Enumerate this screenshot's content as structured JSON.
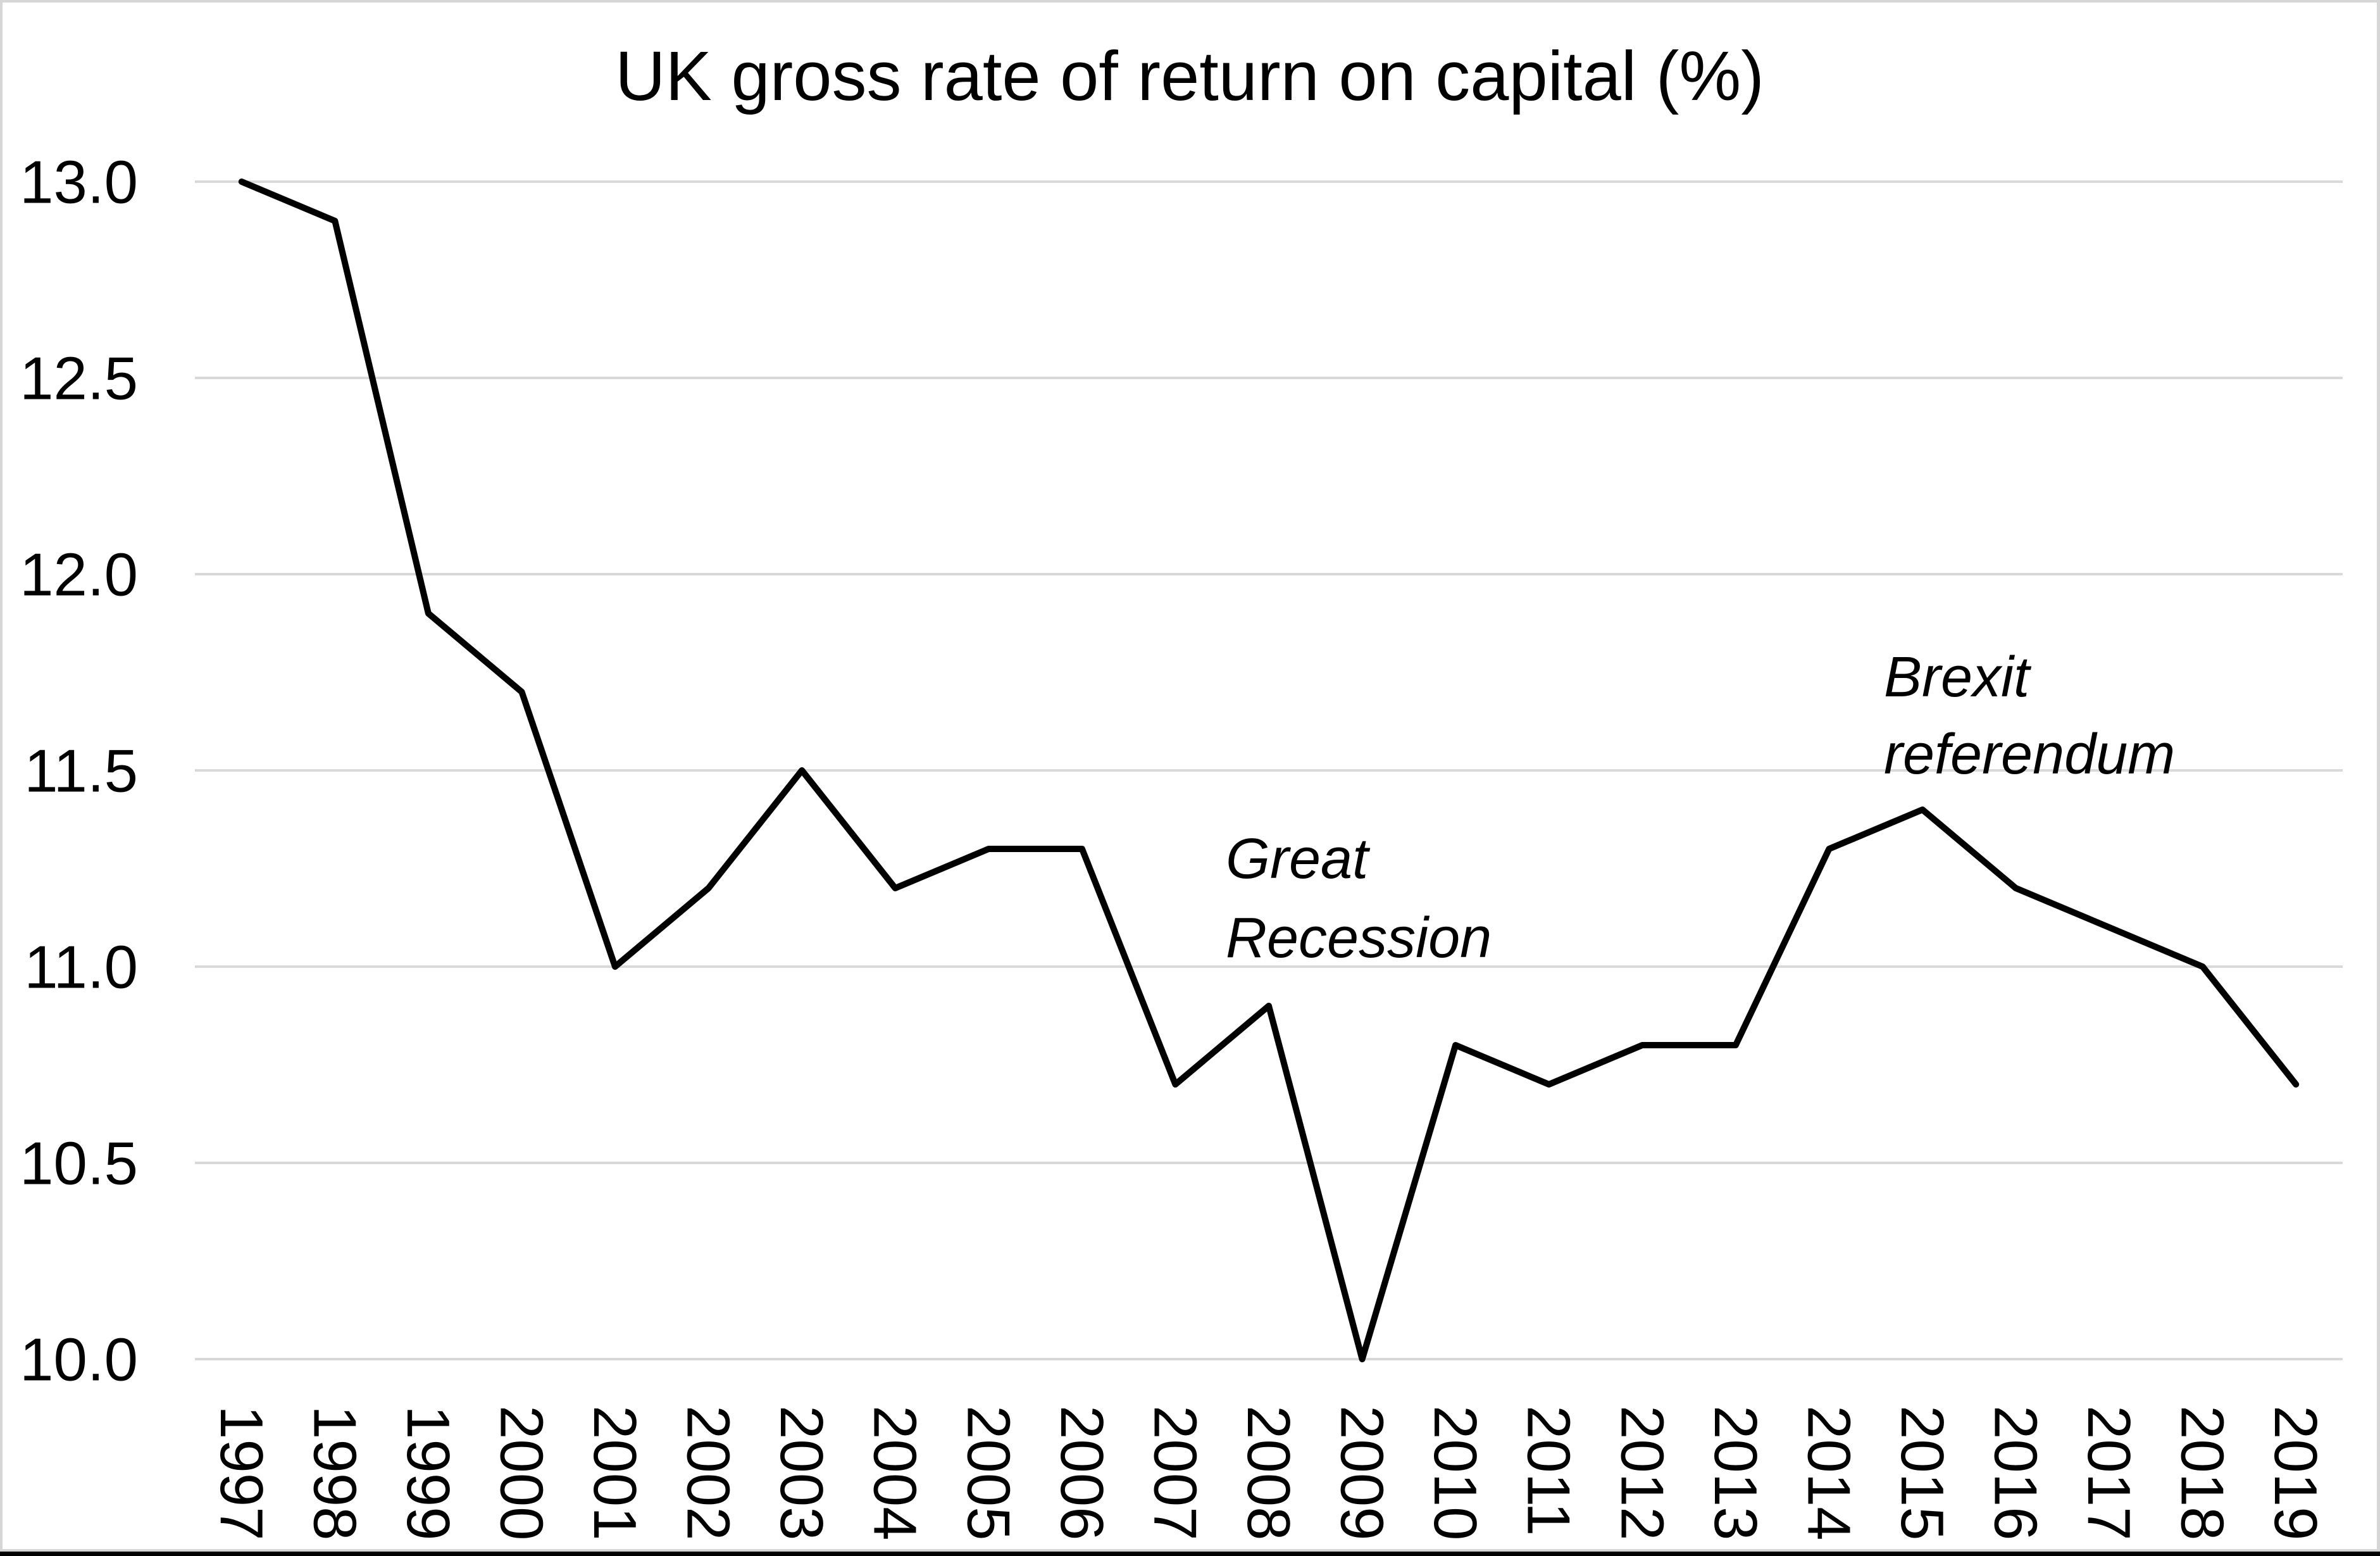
{
  "title": "UK gross rate of return on capital (%)",
  "chart_data": {
    "type": "line",
    "title": "UK gross rate of return on capital (%)",
    "x": [
      "1997",
      "1998",
      "1999",
      "2000",
      "2001",
      "2002",
      "2003",
      "2004",
      "2005",
      "2006",
      "2007",
      "2008",
      "2009",
      "2010",
      "2011",
      "2012",
      "2013",
      "2014",
      "2015",
      "2016",
      "2017",
      "2018",
      "2019"
    ],
    "series": [
      {
        "name": "UK gross rate of return on capital (%)",
        "values": [
          13.0,
          12.9,
          11.9,
          11.7,
          11.0,
          11.2,
          11.5,
          11.2,
          11.3,
          11.3,
          10.7,
          10.9,
          10.0,
          10.8,
          10.7,
          10.8,
          10.8,
          11.3,
          11.4,
          11.2,
          11.1,
          11.0,
          10.7
        ]
      }
    ],
    "xlabel": "",
    "ylabel": "",
    "ylim": [
      10.0,
      13.0
    ],
    "ytick_step": 0.5,
    "ytick_labels": [
      "13.0",
      "12.5",
      "12.0",
      "11.5",
      "11.0",
      "10.5",
      "10.0"
    ],
    "grid": true,
    "legend_position": "none",
    "annotations": [
      {
        "lines": [
          "Great",
          "Recession"
        ]
      },
      {
        "lines": [
          "Brexit",
          "referendum"
        ]
      }
    ]
  },
  "colors": {
    "line": "#000000",
    "grid": "#d9d9d9",
    "text": "#000000",
    "window_border": "#d6d6d6",
    "bottom_bar": "#000000"
  }
}
